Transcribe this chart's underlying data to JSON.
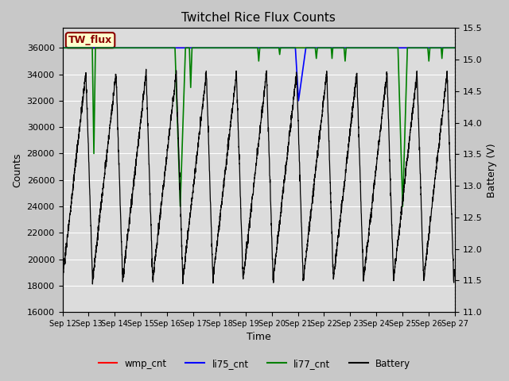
{
  "title": "Twitchel Rice Flux Counts",
  "xlabel": "Time",
  "ylabel_left": "Counts",
  "ylabel_right": "Battery (V)",
  "ylim_left": [
    16000,
    37500
  ],
  "ylim_right": [
    11.0,
    15.5
  ],
  "yticks_left": [
    16000,
    18000,
    20000,
    22000,
    24000,
    26000,
    28000,
    30000,
    32000,
    34000,
    36000
  ],
  "yticks_right": [
    11.0,
    11.5,
    12.0,
    12.5,
    13.0,
    13.5,
    14.0,
    14.5,
    15.0,
    15.5
  ],
  "fig_bg": "#c8c8c8",
  "plot_bg": "#dcdcdc",
  "annotation_text": "TW_flux",
  "annotation_bg": "#ffffcc",
  "annotation_border": "#8b0000",
  "xticklabels": [
    "Sep 12",
    "Sep 13",
    "Sep 14",
    "Sep 15",
    "Sep 16",
    "Sep 17",
    "Sep 18",
    "Sep 19",
    "Sep 20",
    "Sep 21",
    "Sep 22",
    "Sep 23",
    "Sep 24",
    "Sep 25",
    "Sep 26",
    "Sep 27"
  ],
  "legend_labels": [
    "wmp_cnt",
    "li75_cnt",
    "li77_cnt",
    "Battery"
  ],
  "legend_colors": [
    "red",
    "blue",
    "green",
    "black"
  ]
}
